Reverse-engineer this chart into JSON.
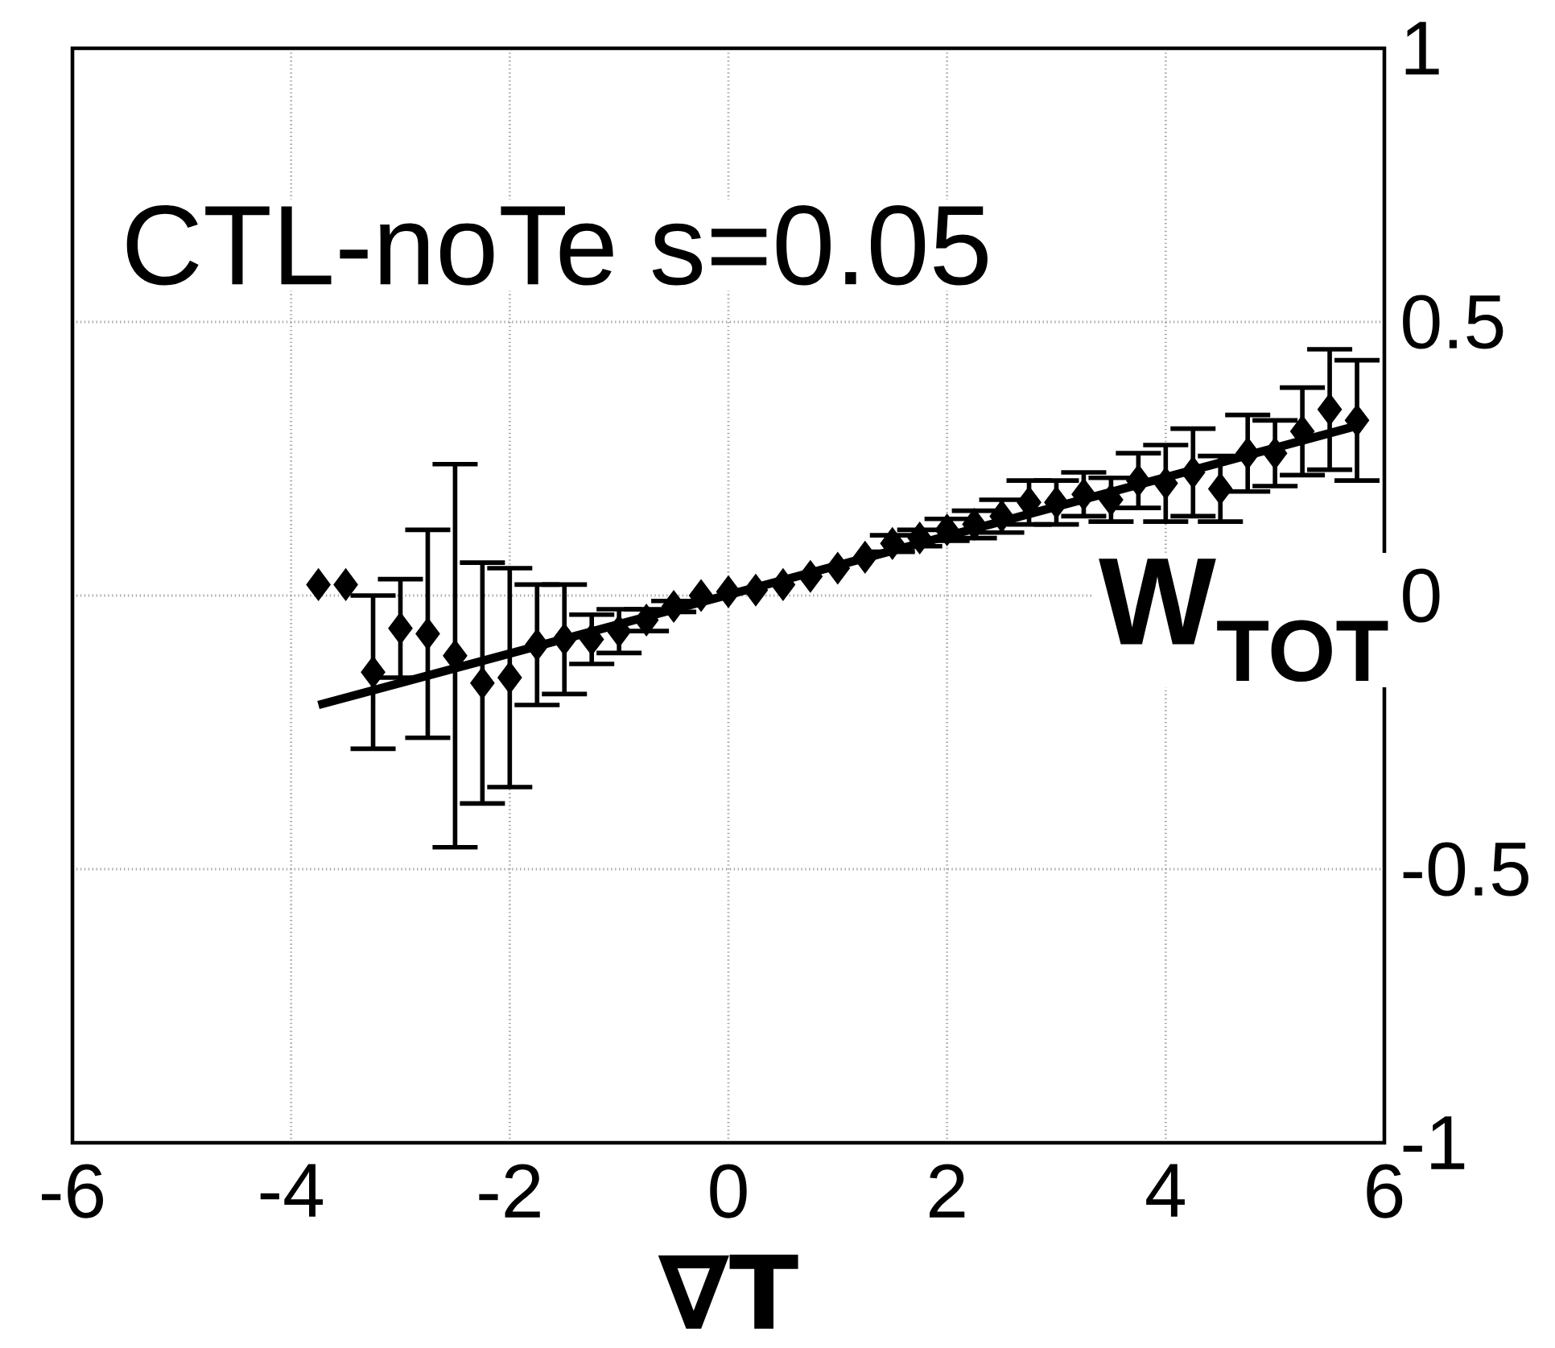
{
  "chart_data": {
    "type": "scatter",
    "xlabel": "∇T",
    "annotations": [
      "CTL-noTe s=0.05",
      "**W$_{TOT}$**"
    ],
    "xlim": [
      -6,
      6
    ],
    "xticks": [
      -6,
      -4,
      -2,
      0,
      2,
      4,
      6
    ],
    "ylim": [
      -1,
      1
    ],
    "yticks": [
      -1,
      -0.5,
      0,
      0.5,
      1
    ],
    "grid": true,
    "marker": "diamond",
    "series": [
      {
        "color": "#000000",
        "x": [
          -3.75,
          -3.5,
          -3.25,
          -3.0,
          -2.75,
          -2.5,
          -2.25,
          -2.0,
          -1.75,
          -1.5,
          -1.25,
          -1.0,
          -0.75,
          -0.5,
          -0.25,
          0,
          0.25,
          0.5,
          0.75,
          1.0,
          1.25,
          1.5,
          1.75,
          2.0,
          2.25,
          2.5,
          2.75,
          3.0,
          3.25,
          3.5,
          3.75,
          4.0,
          4.25,
          4.5,
          4.75,
          5.0,
          5.25,
          5.5,
          5.75
        ],
        "values": [
          0.02,
          0.02,
          -0.14,
          -0.06,
          -0.07,
          -0.11,
          -0.16,
          -0.15,
          -0.09,
          -0.08,
          -0.08,
          -0.065,
          -0.045,
          -0.02,
          0.0,
          0.007,
          0.01,
          0.02,
          0.035,
          0.05,
          0.07,
          0.095,
          0.105,
          0.12,
          0.13,
          0.145,
          0.17,
          0.17,
          0.185,
          0.175,
          0.21,
          0.205,
          0.225,
          0.195,
          0.26,
          0.26,
          0.3,
          0.34,
          0.32
        ],
        "errors": [
          null,
          null,
          0.14,
          0.09,
          0.19,
          0.35,
          0.22,
          0.2,
          0.11,
          0.1,
          0.045,
          0.04,
          0.02,
          0.01,
          null,
          null,
          null,
          null,
          null,
          null,
          null,
          0.015,
          0.015,
          0.02,
          0.025,
          0.03,
          0.04,
          0.04,
          0.04,
          0.04,
          0.05,
          0.07,
          0.08,
          0.06,
          0.07,
          0.06,
          0.08,
          0.11,
          0.11
        ]
      },
      {
        "type": "line",
        "color": "#000000",
        "marker": "none",
        "x": [
          -3.75,
          5.75
        ],
        "values": [
          -0.2,
          0.31
        ]
      }
    ]
  }
}
